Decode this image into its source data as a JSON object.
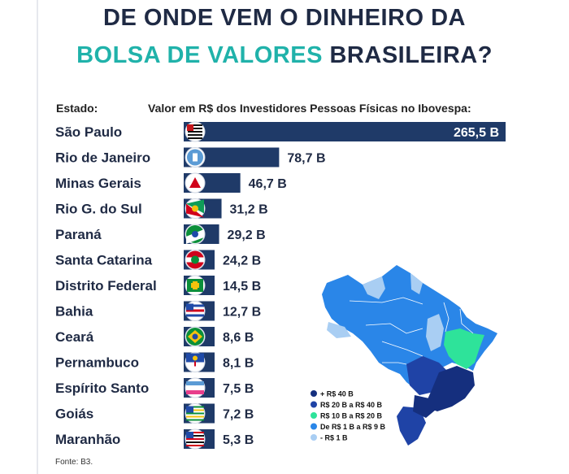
{
  "title_line1": "DE ONDE VEM O DINHEIRO DA",
  "title_line2_highlight": "BOLSA DE VALORES",
  "title_line2_rest": "BRASILEIRA?",
  "header_left": "Estado:",
  "header_right": "Valor em R$ dos Investidores Pessoas Físicas no Ibovespa:",
  "source": "Fonte: B3.",
  "colors": {
    "bar": "#1f3a68",
    "title": "#1f2a44",
    "highlight": "#20b2aa",
    "map_level_1": "#152f7e",
    "map_level_2": "#1f43a6",
    "map_level_3": "#2ee39a",
    "map_level_4": "#2a86e8",
    "map_level_5": "#a9cef3"
  },
  "chart_data": {
    "type": "bar",
    "orientation": "horizontal",
    "unit": "B",
    "categories": [
      "São Paulo",
      "Rio de Janeiro",
      "Minas Gerais",
      "Rio G. do Sul",
      "Paraná",
      "Santa Catarina",
      "Distrito Federal",
      "Bahia",
      "Ceará",
      "Pernambuco",
      "Espírito Santo",
      "Goiás",
      "Maranhão"
    ],
    "values": [
      265.5,
      78.7,
      46.7,
      31.2,
      29.2,
      24.2,
      14.5,
      12.7,
      8.6,
      8.1,
      7.5,
      7.2,
      5.3
    ],
    "labels": [
      "265,5 B",
      "78,7 B",
      "46,7 B",
      "31,2 B",
      "29,2 B",
      "24,2 B",
      "14,5 B",
      "12,7 B",
      "8,6 B",
      "8,1 B",
      "7,5 B",
      "7,2 B",
      "5,3 B"
    ],
    "flag_icons": [
      "sao-paulo-flag-icon",
      "rio-de-janeiro-flag-icon",
      "minas-gerais-flag-icon",
      "rio-grande-do-sul-flag-icon",
      "parana-flag-icon",
      "santa-catarina-flag-icon",
      "distrito-federal-flag-icon",
      "bahia-flag-icon",
      "ceara-flag-icon",
      "pernambuco-flag-icon",
      "espirito-santo-flag-icon",
      "goias-flag-icon",
      "maranhao-flag-icon"
    ],
    "legend": [
      "+ R$ 40 B",
      "R$ 20 B a R$ 40 B",
      "R$ 10 B a R$ 20 B",
      "De R$ 1 B a R$ 9 B",
      "- R$ 1 B"
    ],
    "legend_placement": "bottom-right"
  }
}
